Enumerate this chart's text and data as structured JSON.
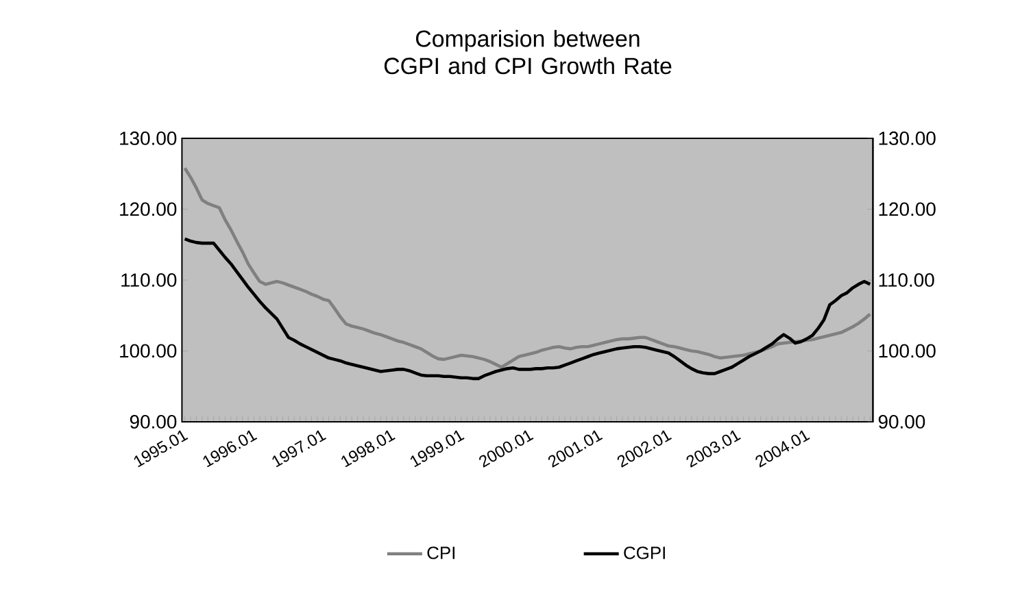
{
  "chart_data": {
    "type": "line",
    "title": "Comparision between CGPI and CPI Growth Rate",
    "categories": [
      "1995.01",
      null,
      null,
      null,
      null,
      null,
      null,
      null,
      null,
      null,
      null,
      null,
      "1996.01",
      null,
      null,
      null,
      null,
      null,
      null,
      null,
      null,
      null,
      null,
      null,
      "1997.01",
      null,
      null,
      null,
      null,
      null,
      null,
      null,
      null,
      null,
      null,
      null,
      "1998.01",
      null,
      null,
      null,
      null,
      null,
      null,
      null,
      null,
      null,
      null,
      null,
      "1999.01",
      null,
      null,
      null,
      null,
      null,
      null,
      null,
      null,
      null,
      null,
      null,
      "2000.01",
      null,
      null,
      null,
      null,
      null,
      null,
      null,
      null,
      null,
      null,
      null,
      "2001.01",
      null,
      null,
      null,
      null,
      null,
      null,
      null,
      null,
      null,
      null,
      null,
      "2002.01",
      null,
      null,
      null,
      null,
      null,
      null,
      null,
      null,
      null,
      null,
      null,
      "2003.01",
      null,
      null,
      null,
      null,
      null,
      null,
      null,
      null,
      null,
      null,
      null,
      "2004.01",
      null,
      null,
      null,
      null,
      null,
      null,
      null,
      null,
      null,
      null,
      null
    ],
    "series": [
      {
        "name": "CPI",
        "color": "#808080",
        "values": [
          125.8,
          124.5,
          123,
          121.3,
          120.8,
          120.5,
          120.2,
          118.5,
          117.1,
          115.5,
          114,
          112.3,
          111,
          109.8,
          109.4,
          109.6,
          109.8,
          109.6,
          109.3,
          109,
          108.7,
          108.4,
          108,
          107.7,
          107.3,
          107.1,
          106,
          104.8,
          103.8,
          103.5,
          103.3,
          103.1,
          102.8,
          102.5,
          102.3,
          102,
          101.7,
          101.4,
          101.2,
          100.9,
          100.6,
          100.3,
          99.8,
          99.3,
          98.9,
          98.8,
          99,
          99.2,
          99.4,
          99.3,
          99.2,
          99,
          98.8,
          98.5,
          98.1,
          97.7,
          98.2,
          98.7,
          99.2,
          99.4,
          99.6,
          99.8,
          100.1,
          100.3,
          100.5,
          100.6,
          100.4,
          100.3,
          100.5,
          100.6,
          100.6,
          100.8,
          101,
          101.2,
          101.4,
          101.6,
          101.7,
          101.7,
          101.8,
          101.9,
          101.9,
          101.6,
          101.3,
          101,
          100.7,
          100.6,
          100.4,
          100.2,
          100,
          99.9,
          99.7,
          99.5,
          99.2,
          99,
          99.1,
          99.2,
          99.3,
          99.4,
          99.6,
          99.8,
          100,
          100.3,
          100.6,
          101,
          101.1,
          101.2,
          101.3,
          101.4,
          101.5,
          101.6,
          101.8,
          102,
          102.2,
          102.4,
          102.6,
          103,
          103.4,
          103.9,
          104.5,
          105.2
        ]
      },
      {
        "name": "CGPI",
        "color": "#000000",
        "values": [
          115.8,
          115.5,
          115.3,
          115.2,
          115.2,
          115.2,
          114.2,
          113.2,
          112.3,
          111.2,
          110.1,
          109,
          108,
          107,
          106.1,
          105.3,
          104.5,
          103.2,
          101.9,
          101.5,
          101,
          100.6,
          100.2,
          99.8,
          99.4,
          99,
          98.8,
          98.6,
          98.3,
          98.1,
          97.9,
          97.7,
          97.5,
          97.3,
          97.1,
          97.2,
          97.3,
          97.4,
          97.4,
          97.2,
          96.9,
          96.6,
          96.5,
          96.5,
          96.5,
          96.4,
          96.4,
          96.3,
          96.2,
          96.2,
          96.1,
          96.1,
          96.5,
          96.8,
          97.1,
          97.3,
          97.5,
          97.6,
          97.4,
          97.4,
          97.4,
          97.5,
          97.5,
          97.6,
          97.6,
          97.7,
          98,
          98.3,
          98.6,
          98.9,
          99.2,
          99.5,
          99.7,
          99.9,
          100.1,
          100.3,
          100.4,
          100.5,
          100.6,
          100.6,
          100.5,
          100.3,
          100.1,
          99.9,
          99.7,
          99.2,
          98.6,
          98,
          97.5,
          97.1,
          96.9,
          96.8,
          96.8,
          97.1,
          97.4,
          97.7,
          98.2,
          98.7,
          99.2,
          99.6,
          100,
          100.5,
          101,
          101.7,
          102.3,
          101.8,
          101.1,
          101.3,
          101.7,
          102.2,
          103.2,
          104.4,
          106.5,
          107.1,
          107.8,
          108.2,
          108.9,
          109.4,
          109.8,
          109.4
        ]
      }
    ],
    "ylim": [
      90,
      130
    ],
    "yticks": [
      {
        "value": 90,
        "label": "90.00"
      },
      {
        "value": 100,
        "label": "100.00"
      },
      {
        "value": 110,
        "label": "110.00"
      },
      {
        "value": 120,
        "label": "120.00"
      },
      {
        "value": 130,
        "label": "130.00"
      }
    ],
    "y2lim": [
      90,
      130
    ],
    "y2ticks": [
      {
        "value": 90,
        "label": "90.00"
      },
      {
        "value": 100,
        "label": "100.00"
      },
      {
        "value": 110,
        "label": "110.00"
      },
      {
        "value": 120,
        "label": "120.00"
      },
      {
        "value": 130,
        "label": "130.00"
      }
    ],
    "legend": "bottom",
    "marker": "none",
    "line_style": "solid"
  }
}
